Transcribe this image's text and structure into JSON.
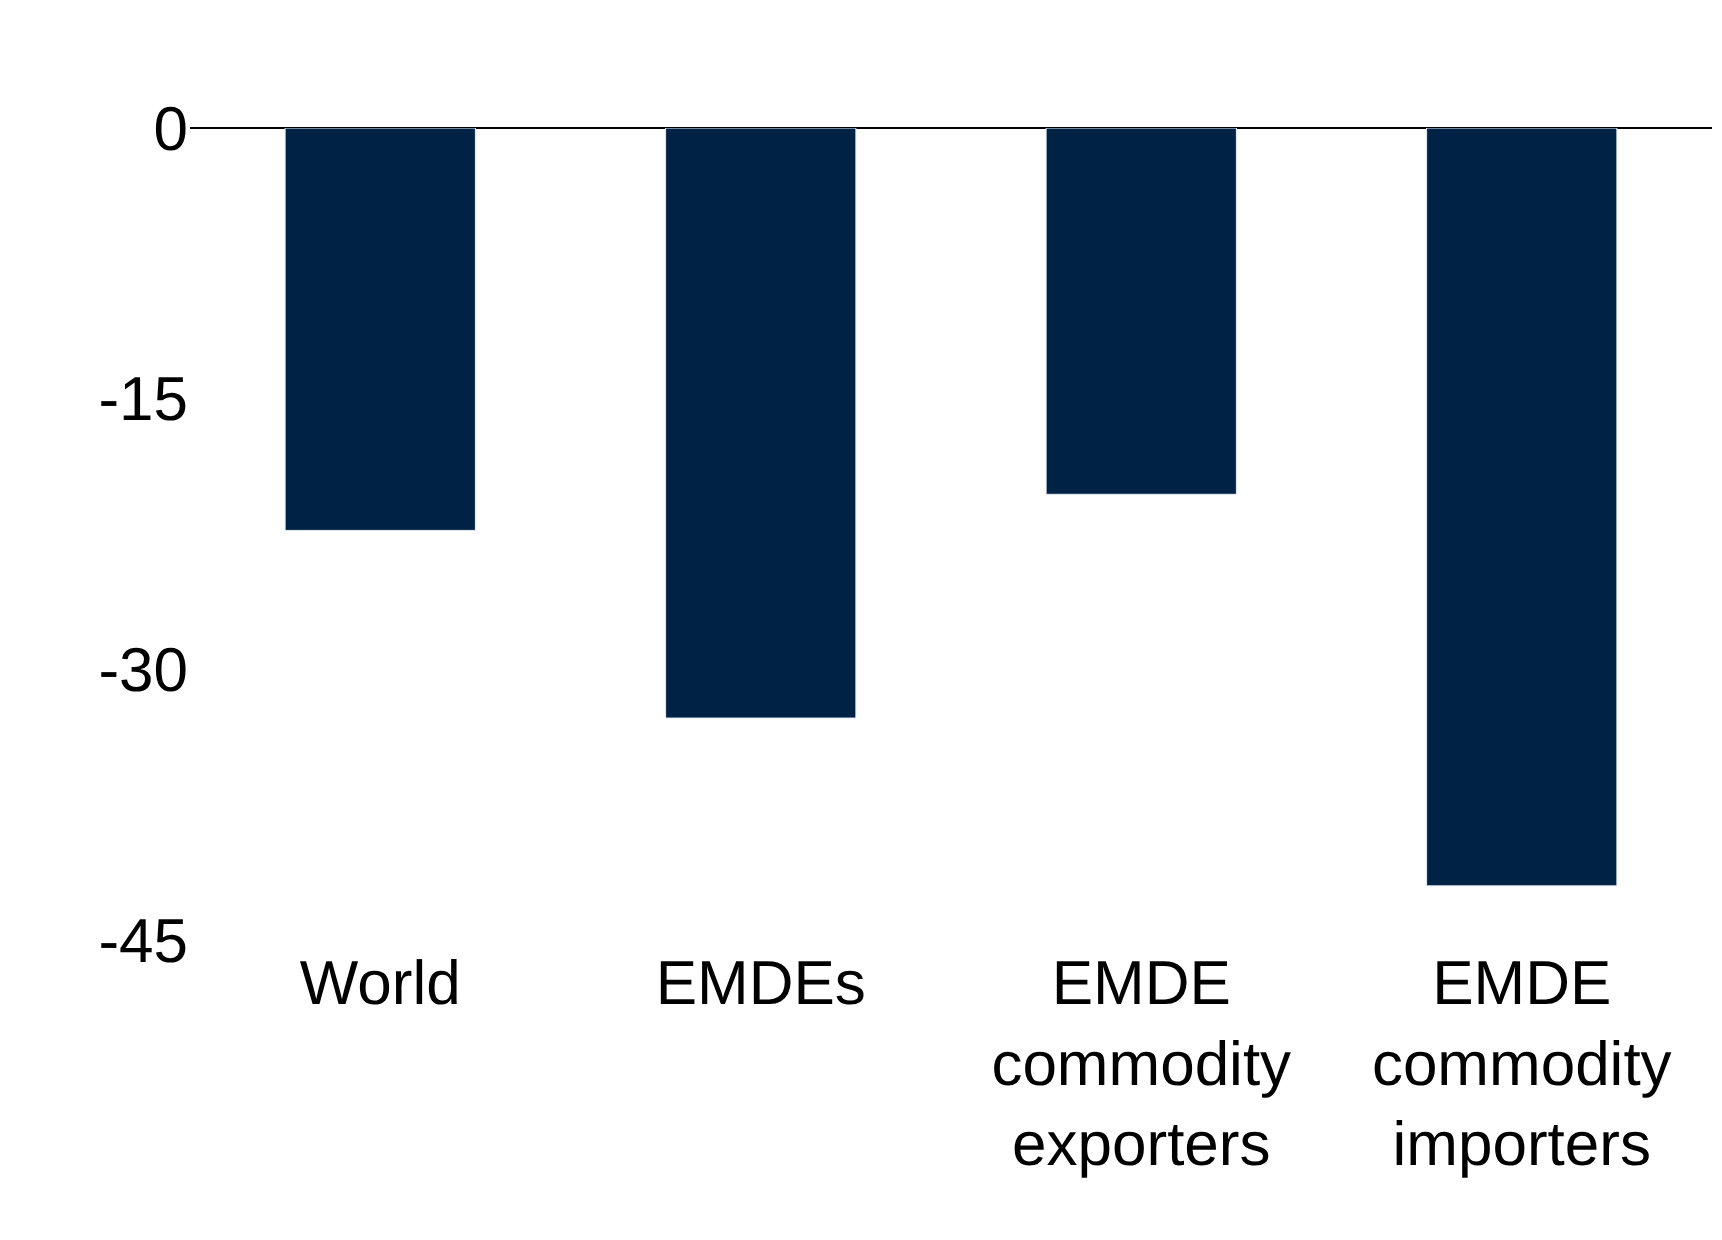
{
  "chart_data": {
    "type": "bar",
    "categories": [
      "World",
      "EMDEs",
      "EMDE\ncommodity\nexporters",
      "EMDE\ncommodity\nimporters"
    ],
    "values": [
      -22.3,
      -32.7,
      -20.3,
      -42.0
    ],
    "color": "#002345",
    "ylim": [
      -45,
      0
    ],
    "yticks": [
      0,
      -15,
      -30,
      -45
    ]
  }
}
